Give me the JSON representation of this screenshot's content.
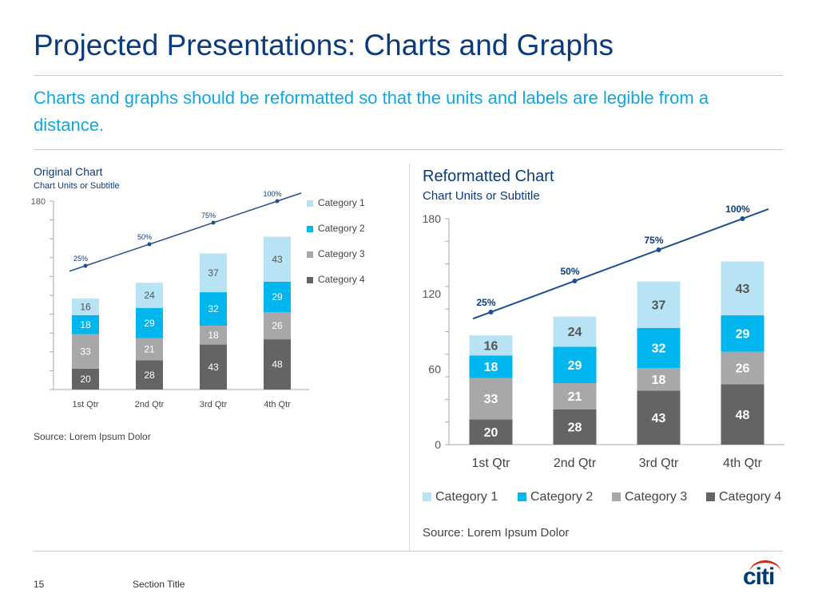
{
  "slide": {
    "title": "Projected Presentations: Charts and Graphs",
    "subtitle": "Charts and graphs should be reformatted so that the units and labels are legible from a distance.",
    "page_number": "15",
    "section_title": "Section Title",
    "logo_text": "citi"
  },
  "colors": {
    "title": "#0a3c7d",
    "subtitle": "#0fa8e0",
    "category_1": "#b8e3f5",
    "category_2": "#00b6ef",
    "category_3": "#a8a8aa",
    "category_4": "#646466",
    "line": "#1e4f8f",
    "logo_arc": "#d9261c"
  },
  "chart_data": [
    {
      "type": "bar",
      "stacked": true,
      "title": "Original Chart",
      "subtitle": "Chart Units or Subtitle",
      "source": "Source: Lorem Ipsum Dolor",
      "categories": [
        "1st Qtr",
        "2nd Qtr",
        "3rd Qtr",
        "4th Qtr"
      ],
      "series": [
        {
          "name": "Category 4",
          "values": [
            20,
            28,
            43,
            48
          ]
        },
        {
          "name": "Category 3",
          "values": [
            33,
            21,
            18,
            26
          ]
        },
        {
          "name": "Category 2",
          "values": [
            18,
            29,
            32,
            29
          ]
        },
        {
          "name": "Category 1",
          "values": [
            16,
            24,
            37,
            43
          ]
        }
      ],
      "line": {
        "labels": [
          "25%",
          "50%",
          "75%",
          "100%"
        ],
        "values": [
          25,
          50,
          75,
          100
        ],
        "ylim": [
          0,
          100
        ]
      },
      "ylim": [
        0,
        180
      ],
      "yticks": [
        180
      ],
      "legend_order": [
        "Category 1",
        "Category 2",
        "Category 3",
        "Category 4"
      ],
      "legend_position": "right"
    },
    {
      "type": "bar",
      "stacked": true,
      "title": "Reformatted Chart",
      "subtitle": "Chart Units or Subtitle",
      "source": "Source: Lorem Ipsum Dolor",
      "categories": [
        "1st Qtr",
        "2nd Qtr",
        "3rd Qtr",
        "4th Qtr"
      ],
      "series": [
        {
          "name": "Category 4",
          "values": [
            20,
            28,
            43,
            48
          ]
        },
        {
          "name": "Category 3",
          "values": [
            33,
            21,
            18,
            26
          ]
        },
        {
          "name": "Category 2",
          "values": [
            18,
            29,
            32,
            29
          ]
        },
        {
          "name": "Category 1",
          "values": [
            16,
            24,
            37,
            43
          ]
        }
      ],
      "line": {
        "labels": [
          "25%",
          "50%",
          "75%",
          "100%"
        ],
        "values": [
          25,
          50,
          75,
          100
        ],
        "ylim": [
          0,
          100
        ]
      },
      "ylim": [
        0,
        180
      ],
      "yticks": [
        0,
        60,
        120,
        180
      ],
      "legend_order": [
        "Category 1",
        "Category 2",
        "Category 3",
        "Category 4"
      ],
      "legend_position": "bottom"
    }
  ]
}
